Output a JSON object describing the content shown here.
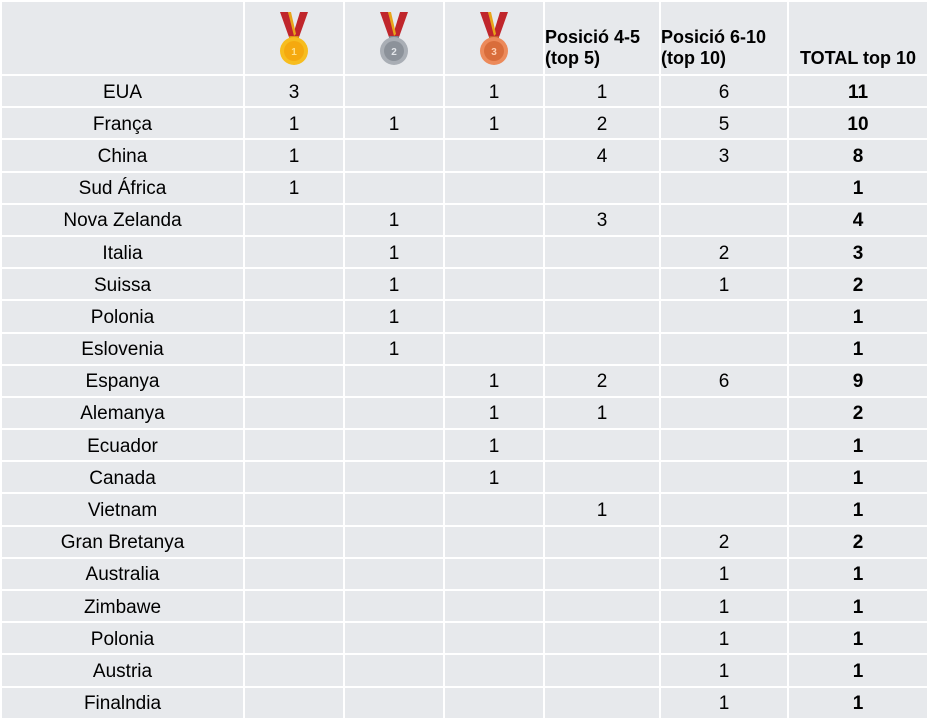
{
  "header": {
    "gold_icon": "gold-medal-icon",
    "silver_icon": "silver-medal-icon",
    "bronze_icon": "bronze-medal-icon",
    "pos45_line1": "Posició 4-5",
    "pos45_line2": "(top 5)",
    "pos610_line1": "Posició 6-10",
    "pos610_line2": "(top 10)",
    "total": "TOTAL top 10"
  },
  "colors": {
    "gold": "#f2b01e",
    "silver": "#9ea3ab",
    "bronze": "#e07b4f",
    "ribbon": "#c0262c",
    "cell_bg": "#e7e9ec"
  },
  "rows": [
    {
      "country": "EUA",
      "gold": "3",
      "silver": "",
      "bronze": "1",
      "pos45": "1",
      "pos610": "6",
      "total": "11"
    },
    {
      "country": "França",
      "gold": "1",
      "silver": "1",
      "bronze": "1",
      "pos45": "2",
      "pos610": "5",
      "total": "10"
    },
    {
      "country": "China",
      "gold": "1",
      "silver": "",
      "bronze": "",
      "pos45": "4",
      "pos610": "3",
      "total": "8"
    },
    {
      "country": "Sud África",
      "gold": "1",
      "silver": "",
      "bronze": "",
      "pos45": "",
      "pos610": "",
      "total": "1"
    },
    {
      "country": "Nova Zelanda",
      "gold": "",
      "silver": "1",
      "bronze": "",
      "pos45": "3",
      "pos610": "",
      "total": "4"
    },
    {
      "country": "Italia",
      "gold": "",
      "silver": "1",
      "bronze": "",
      "pos45": "",
      "pos610": "2",
      "total": "3"
    },
    {
      "country": "Suissa",
      "gold": "",
      "silver": "1",
      "bronze": "",
      "pos45": "",
      "pos610": "1",
      "total": "2"
    },
    {
      "country": "Polonia",
      "gold": "",
      "silver": "1",
      "bronze": "",
      "pos45": "",
      "pos610": "",
      "total": "1"
    },
    {
      "country": "Eslovenia",
      "gold": "",
      "silver": "1",
      "bronze": "",
      "pos45": "",
      "pos610": "",
      "total": "1"
    },
    {
      "country": "Espanya",
      "gold": "",
      "silver": "",
      "bronze": "1",
      "pos45": "2",
      "pos610": "6",
      "total": "9"
    },
    {
      "country": "Alemanya",
      "gold": "",
      "silver": "",
      "bronze": "1",
      "pos45": "1",
      "pos610": "",
      "total": "2"
    },
    {
      "country": "Ecuador",
      "gold": "",
      "silver": "",
      "bronze": "1",
      "pos45": "",
      "pos610": "",
      "total": "1"
    },
    {
      "country": "Canada",
      "gold": "",
      "silver": "",
      "bronze": "1",
      "pos45": "",
      "pos610": "",
      "total": "1"
    },
    {
      "country": "Vietnam",
      "gold": "",
      "silver": "",
      "bronze": "",
      "pos45": "1",
      "pos610": "",
      "total": "1"
    },
    {
      "country": "Gran Bretanya",
      "gold": "",
      "silver": "",
      "bronze": "",
      "pos45": "",
      "pos610": "2",
      "total": "2"
    },
    {
      "country": "Australia",
      "gold": "",
      "silver": "",
      "bronze": "",
      "pos45": "",
      "pos610": "1",
      "total": "1"
    },
    {
      "country": "Zimbawe",
      "gold": "",
      "silver": "",
      "bronze": "",
      "pos45": "",
      "pos610": "1",
      "total": "1"
    },
    {
      "country": "Polonia",
      "gold": "",
      "silver": "",
      "bronze": "",
      "pos45": "",
      "pos610": "1",
      "total": "1"
    },
    {
      "country": "Austria",
      "gold": "",
      "silver": "",
      "bronze": "",
      "pos45": "",
      "pos610": "1",
      "total": "1"
    },
    {
      "country": "Finalndia",
      "gold": "",
      "silver": "",
      "bronze": "",
      "pos45": "",
      "pos610": "1",
      "total": "1"
    }
  ]
}
